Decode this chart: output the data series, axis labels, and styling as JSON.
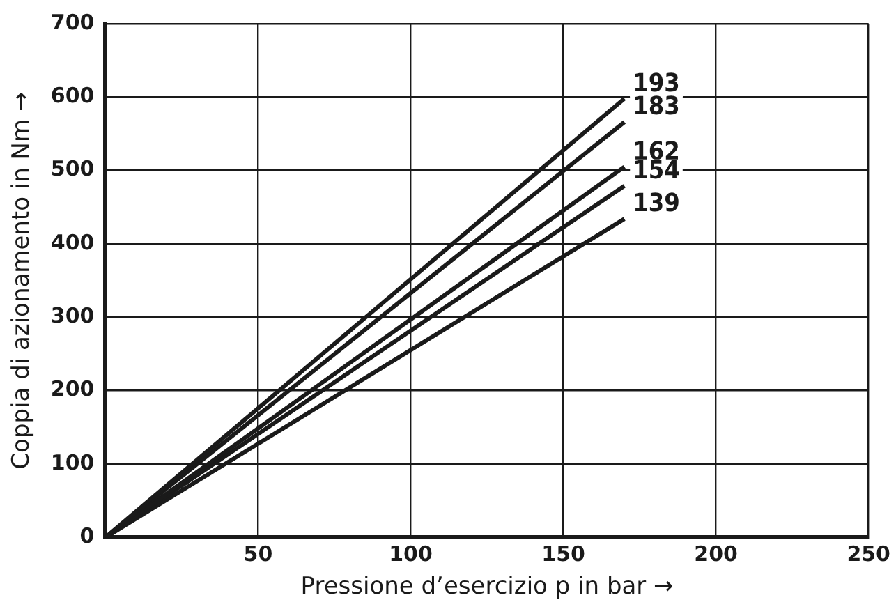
{
  "chart_data": {
    "type": "line",
    "xlabel": "Pressione d’esercizio p in bar →",
    "ylabel": "Coppia di azionamento in Nm →",
    "xlim": [
      0,
      250
    ],
    "xticks": [
      {
        "value": 0,
        "label": null
      },
      50,
      100,
      150,
      200,
      250
    ],
    "ylim": [
      0,
      700
    ],
    "yticks": [
      0,
      100,
      200,
      300,
      400,
      500,
      600,
      700
    ],
    "grid": true,
    "legend": false,
    "marker": "none",
    "line_style": "solid",
    "x": [
      0,
      170
    ],
    "series": [
      {
        "name": "193",
        "color": "#1a1a1a",
        "values": [
          0,
          598
        ]
      },
      {
        "name": "183",
        "color": "#1a1a1a",
        "values": [
          0,
          566
        ]
      },
      {
        "name": "162",
        "color": "#1a1a1a",
        "values": [
          0,
          505
        ]
      },
      {
        "name": "154",
        "color": "#1a1a1a",
        "values": [
          0,
          479
        ]
      },
      {
        "name": "139",
        "color": "#1a1a1a",
        "values": [
          0,
          434
        ]
      }
    ]
  }
}
